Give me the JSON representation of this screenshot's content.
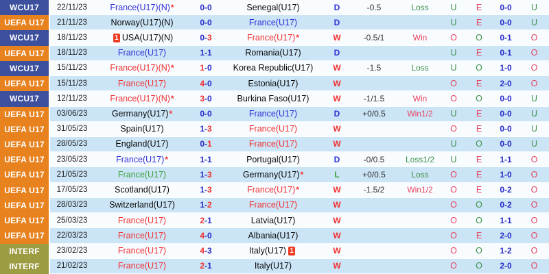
{
  "colors": {
    "badge": {
      "WCU17": "#3c509e",
      "UEFA U17": "#e8821e",
      "INTERF": "#9c9c42"
    },
    "team": {
      "blue": "#2e2ed6",
      "red": "#f13030",
      "green": "#3aa23a",
      "black": "#0a0a0a"
    },
    "result": {
      "W": "#f13030",
      "D": "#2e2ed6",
      "L": "#3aa23a"
    },
    "letter_green": "#3f9149",
    "letter_red": "#e74560",
    "score_navy": "#2b2bc8",
    "score_red": "#f13030",
    "row_odd_bg": "#f8fcff",
    "row_even_bg": "#cbe4f6"
  },
  "red_card_badge_text": "1",
  "table": {
    "rows": [
      {
        "competition": "WCU17",
        "date": "22/11/23",
        "home": {
          "name": "France(U17)(N)",
          "color": "blue",
          "star": true,
          "red_card": false
        },
        "score": "0-0",
        "away": {
          "name": "Senegal(U17)",
          "color": "black",
          "star": false,
          "red_card": false
        },
        "result": "D",
        "handicap": "-0.5",
        "handicap_result": "Loss",
        "ou_ft": "U",
        "odd_even": "E",
        "ht_score": "0-0",
        "ou_ht": "U"
      },
      {
        "competition": "UEFA U17",
        "date": "21/11/23",
        "home": {
          "name": "Norway(U17)(N)",
          "color": "black",
          "star": false,
          "red_card": false
        },
        "score": "0-0",
        "away": {
          "name": "France(U17)",
          "color": "blue",
          "star": false,
          "red_card": false
        },
        "result": "D",
        "handicap": "",
        "handicap_result": "",
        "ou_ft": "U",
        "odd_even": "E",
        "ht_score": "0-0",
        "ou_ht": "U"
      },
      {
        "competition": "WCU17",
        "date": "18/11/23",
        "home": {
          "name": "USA(U17)(N)",
          "color": "black",
          "star": false,
          "red_card": true
        },
        "score": "0-3",
        "away": {
          "name": "France(U17)",
          "color": "red",
          "star": true,
          "red_card": false
        },
        "result": "W",
        "handicap": "-0.5/1",
        "handicap_result": "Win",
        "ou_ft": "O",
        "odd_even": "O",
        "ht_score": "0-1",
        "ou_ht": "O"
      },
      {
        "competition": "UEFA U17",
        "date": "18/11/23",
        "home": {
          "name": "France(U17)",
          "color": "blue",
          "star": false,
          "red_card": false
        },
        "score": "1-1",
        "away": {
          "name": "Romania(U17)",
          "color": "black",
          "star": false,
          "red_card": false
        },
        "result": "D",
        "handicap": "",
        "handicap_result": "",
        "ou_ft": "U",
        "odd_even": "E",
        "ht_score": "0-1",
        "ou_ht": "O"
      },
      {
        "competition": "WCU17",
        "date": "15/11/23",
        "home": {
          "name": "France(U17)(N)",
          "color": "red",
          "star": true,
          "red_card": false
        },
        "score": "1-0",
        "away": {
          "name": "Korea Republic(U17)",
          "color": "black",
          "star": false,
          "red_card": false
        },
        "result": "W",
        "handicap": "-1.5",
        "handicap_result": "Loss",
        "ou_ft": "U",
        "odd_even": "O",
        "ht_score": "1-0",
        "ou_ht": "O"
      },
      {
        "competition": "UEFA U17",
        "date": "15/11/23",
        "home": {
          "name": "France(U17)",
          "color": "red",
          "star": false,
          "red_card": false
        },
        "score": "4-0",
        "away": {
          "name": "Estonia(U17)",
          "color": "black",
          "star": false,
          "red_card": false
        },
        "result": "W",
        "handicap": "",
        "handicap_result": "",
        "ou_ft": "O",
        "odd_even": "E",
        "ht_score": "2-0",
        "ou_ht": "O"
      },
      {
        "competition": "WCU17",
        "date": "12/11/23",
        "home": {
          "name": "France(U17)(N)",
          "color": "red",
          "star": true,
          "red_card": false
        },
        "score": "3-0",
        "away": {
          "name": "Burkina Faso(U17)",
          "color": "black",
          "star": false,
          "red_card": false
        },
        "result": "W",
        "handicap": "-1/1.5",
        "handicap_result": "Win",
        "ou_ft": "O",
        "odd_even": "O",
        "ht_score": "0-0",
        "ou_ht": "U"
      },
      {
        "competition": "UEFA U17",
        "date": "03/06/23",
        "home": {
          "name": "Germany(U17)",
          "color": "black",
          "star": true,
          "red_card": false
        },
        "score": "0-0",
        "away": {
          "name": "France(U17)",
          "color": "blue",
          "star": false,
          "red_card": false
        },
        "result": "D",
        "handicap": "+0/0.5",
        "handicap_result": "Win1/2",
        "ou_ft": "U",
        "odd_even": "E",
        "ht_score": "0-0",
        "ou_ht": "U"
      },
      {
        "competition": "UEFA U17",
        "date": "31/05/23",
        "home": {
          "name": "Spain(U17)",
          "color": "black",
          "star": false,
          "red_card": false
        },
        "score": "1-3",
        "away": {
          "name": "France(U17)",
          "color": "red",
          "star": false,
          "red_card": false
        },
        "result": "W",
        "handicap": "",
        "handicap_result": "",
        "ou_ft": "O",
        "odd_even": "E",
        "ht_score": "0-0",
        "ou_ht": "U"
      },
      {
        "competition": "UEFA U17",
        "date": "28/05/23",
        "home": {
          "name": "England(U17)",
          "color": "black",
          "star": false,
          "red_card": false
        },
        "score": "0-1",
        "away": {
          "name": "France(U17)",
          "color": "red",
          "star": false,
          "red_card": false
        },
        "result": "W",
        "handicap": "",
        "handicap_result": "",
        "ou_ft": "U",
        "odd_even": "O",
        "ht_score": "0-0",
        "ou_ht": "U"
      },
      {
        "competition": "UEFA U17",
        "date": "23/05/23",
        "home": {
          "name": "France(U17)",
          "color": "blue",
          "star": true,
          "red_card": false
        },
        "score": "1-1",
        "away": {
          "name": "Portugal(U17)",
          "color": "black",
          "star": false,
          "red_card": false
        },
        "result": "D",
        "handicap": "-0/0.5",
        "handicap_result": "Loss1/2",
        "ou_ft": "U",
        "odd_even": "E",
        "ht_score": "1-1",
        "ou_ht": "O"
      },
      {
        "competition": "UEFA U17",
        "date": "21/05/23",
        "home": {
          "name": "France(U17)",
          "color": "green",
          "star": false,
          "red_card": false
        },
        "score": "1-3",
        "away": {
          "name": "Germany(U17)",
          "color": "black",
          "star": true,
          "red_card": false
        },
        "result": "L",
        "handicap": "+0/0.5",
        "handicap_result": "Loss",
        "ou_ft": "O",
        "odd_even": "E",
        "ht_score": "1-0",
        "ou_ht": "O"
      },
      {
        "competition": "UEFA U17",
        "date": "17/05/23",
        "home": {
          "name": "Scotland(U17)",
          "color": "black",
          "star": false,
          "red_card": false
        },
        "score": "1-3",
        "away": {
          "name": "France(U17)",
          "color": "red",
          "star": true,
          "red_card": false
        },
        "result": "W",
        "handicap": "-1.5/2",
        "handicap_result": "Win1/2",
        "ou_ft": "O",
        "odd_even": "E",
        "ht_score": "0-2",
        "ou_ht": "O"
      },
      {
        "competition": "UEFA U17",
        "date": "28/03/23",
        "home": {
          "name": "Switzerland(U17)",
          "color": "black",
          "star": false,
          "red_card": false
        },
        "score": "1-2",
        "away": {
          "name": "France(U17)",
          "color": "red",
          "star": false,
          "red_card": false
        },
        "result": "W",
        "handicap": "",
        "handicap_result": "",
        "ou_ft": "O",
        "odd_even": "O",
        "ht_score": "0-2",
        "ou_ht": "O"
      },
      {
        "competition": "UEFA U17",
        "date": "25/03/23",
        "home": {
          "name": "France(U17)",
          "color": "red",
          "star": false,
          "red_card": false
        },
        "score": "2-1",
        "away": {
          "name": "Latvia(U17)",
          "color": "black",
          "star": false,
          "red_card": false
        },
        "result": "W",
        "handicap": "",
        "handicap_result": "",
        "ou_ft": "O",
        "odd_even": "O",
        "ht_score": "1-1",
        "ou_ht": "O"
      },
      {
        "competition": "UEFA U17",
        "date": "22/03/23",
        "home": {
          "name": "France(U17)",
          "color": "red",
          "star": false,
          "red_card": false
        },
        "score": "4-0",
        "away": {
          "name": "Albania(U17)",
          "color": "black",
          "star": false,
          "red_card": false
        },
        "result": "W",
        "handicap": "",
        "handicap_result": "",
        "ou_ft": "O",
        "odd_even": "E",
        "ht_score": "2-0",
        "ou_ht": "O"
      },
      {
        "competition": "INTERF",
        "date": "23/02/23",
        "home": {
          "name": "France(U17)",
          "color": "red",
          "star": false,
          "red_card": false
        },
        "score": "4-3",
        "away": {
          "name": "Italy(U17)",
          "color": "black",
          "star": false,
          "red_card": true
        },
        "result": "W",
        "handicap": "",
        "handicap_result": "",
        "ou_ft": "O",
        "odd_even": "O",
        "ht_score": "1-2",
        "ou_ht": "O"
      },
      {
        "competition": "INTERF",
        "date": "21/02/23",
        "home": {
          "name": "France(U17)",
          "color": "red",
          "star": false,
          "red_card": false
        },
        "score": "2-1",
        "away": {
          "name": "Italy(U17)",
          "color": "black",
          "star": false,
          "red_card": false
        },
        "result": "W",
        "handicap": "",
        "handicap_result": "",
        "ou_ft": "O",
        "odd_even": "O",
        "ht_score": "2-0",
        "ou_ht": "O"
      }
    ]
  }
}
